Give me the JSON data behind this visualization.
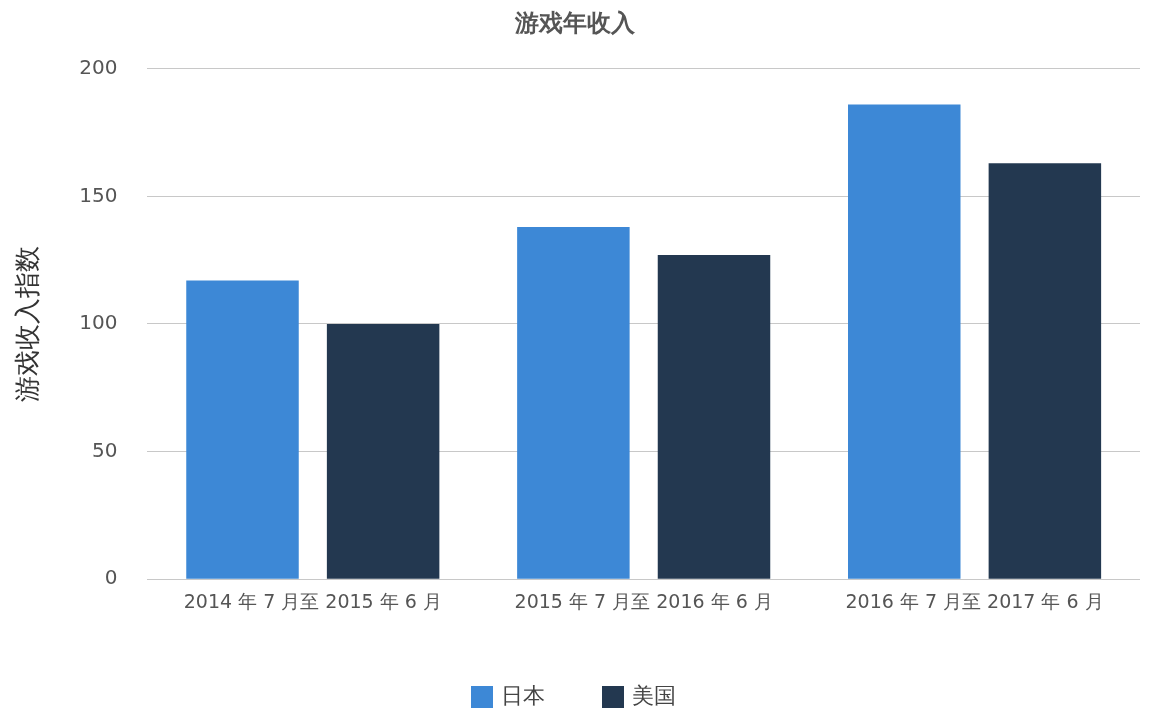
{
  "chart_data": {
    "type": "bar",
    "title": "游戏年收入",
    "ylabel": "游戏收入指数",
    "categories": [
      "2014 年 7 月至 2015 年 6 月",
      "2015 年 7 月至 2016 年 6 月",
      "2016 年 7 月至 2017 年 6 月"
    ],
    "series": [
      {
        "name": "日本",
        "color": "#3d88d6",
        "values": [
          117,
          138,
          186
        ]
      },
      {
        "name": "美国",
        "color": "#233850",
        "values": [
          100,
          127,
          163
        ]
      }
    ],
    "ylim": [
      0,
      200
    ],
    "yticks": [
      0,
      50,
      100,
      150,
      200
    ],
    "grid": "y",
    "legend": "bottom"
  }
}
